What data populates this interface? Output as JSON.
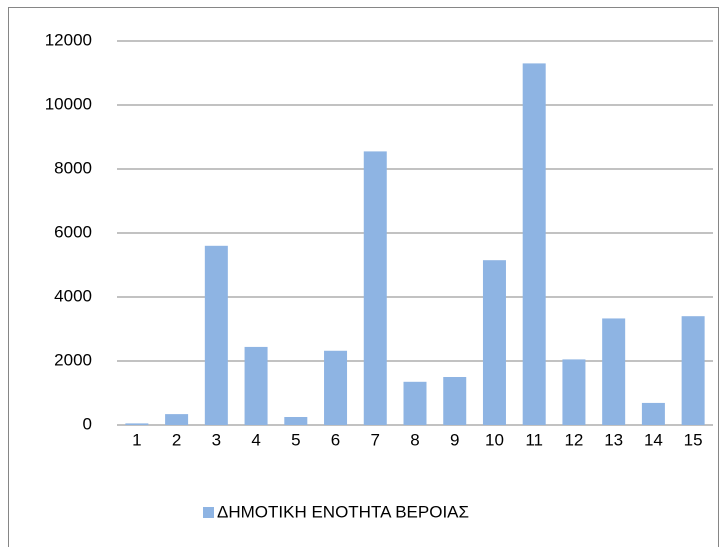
{
  "chart_data": {
    "type": "bar",
    "categories": [
      "1",
      "2",
      "3",
      "4",
      "5",
      "6",
      "7",
      "8",
      "9",
      "10",
      "11",
      "12",
      "13",
      "14",
      "15"
    ],
    "series": [
      {
        "name": "ΔΗΜΟΤΙΚΗ ΕΝΟΤΗΤΑ ΒΕΡΟΙΑΣ",
        "color": "#8eb4e3",
        "values": [
          50,
          340,
          5600,
          2440,
          250,
          2320,
          8550,
          1350,
          1500,
          5150,
          11300,
          2050,
          3330,
          690,
          3400
        ]
      }
    ],
    "ylim": [
      0,
      12000
    ],
    "yticks": [
      0,
      2000,
      4000,
      6000,
      8000,
      10000,
      12000
    ],
    "grid": true,
    "legend": "bottom"
  }
}
